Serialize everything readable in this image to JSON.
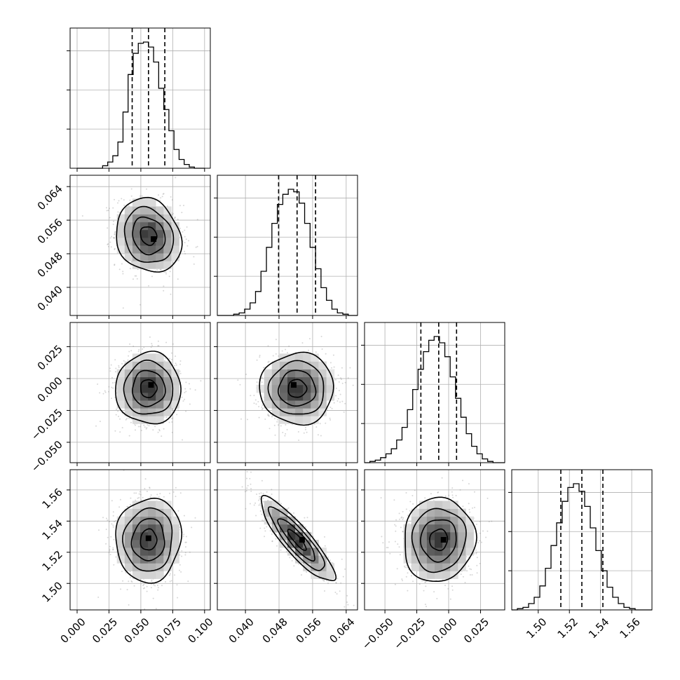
{
  "chart_data": {
    "type": "corner",
    "parameters": [
      {
        "range": [
          -0.0055,
          0.1045
        ],
        "ticks": [
          0.0,
          0.025,
          0.05,
          0.075,
          0.1
        ],
        "tick_labels": [
          "0.000",
          "0.025",
          "0.050",
          "0.075",
          "0.100"
        ],
        "quantiles": [
          0.0432,
          0.056,
          0.0688
        ],
        "hist_bin_edges": [
          0.0,
          0.004,
          0.008,
          0.012,
          0.016,
          0.02,
          0.024,
          0.028,
          0.032,
          0.036,
          0.04,
          0.044,
          0.048,
          0.052,
          0.056,
          0.06,
          0.064,
          0.068,
          0.072,
          0.076,
          0.08,
          0.084,
          0.088,
          0.092,
          0.096,
          0.1
        ],
        "hist_counts": [
          0,
          0,
          0,
          0,
          0,
          2,
          5,
          10,
          21,
          45,
          75,
          92,
          100,
          101,
          97,
          85,
          64,
          47,
          30,
          15,
          7,
          3,
          1,
          0,
          0
        ]
      },
      {
        "range": [
          0.0333,
          0.0667
        ],
        "ticks": [
          0.04,
          0.048,
          0.056,
          0.064
        ],
        "tick_labels": [
          "0.040",
          "0.048",
          "0.056",
          "0.064"
        ],
        "quantiles": [
          0.0479,
          0.0523,
          0.0567
        ],
        "hist_bin_edges": [
          0.0333,
          0.0346,
          0.0359,
          0.0372,
          0.0385,
          0.0398,
          0.0411,
          0.0424,
          0.0437,
          0.045,
          0.0463,
          0.0476,
          0.0489,
          0.0502,
          0.0515,
          0.0528,
          0.0541,
          0.0554,
          0.0567,
          0.058,
          0.0593,
          0.0606,
          0.0619,
          0.0632,
          0.0645,
          0.0658,
          0.0667
        ],
        "hist_counts": [
          0,
          0,
          0,
          1,
          2,
          5,
          10,
          19,
          35,
          54,
          73,
          88,
          96,
          100,
          98,
          89,
          73,
          54,
          37,
          22,
          12,
          5,
          2,
          1,
          0,
          0
        ]
      },
      {
        "range": [
          -0.066,
          0.044
        ],
        "ticks": [
          -0.05,
          -0.025,
          0.0,
          0.025
        ],
        "tick_labels": [
          "−0.050",
          "−0.025",
          "0.000",
          "0.025"
        ],
        "quantiles": [
          -0.0218,
          -0.0078,
          0.0062
        ],
        "hist_bin_edges": [
          -0.066,
          -0.0618,
          -0.0576,
          -0.0534,
          -0.0492,
          -0.045,
          -0.0408,
          -0.0366,
          -0.0324,
          -0.0282,
          -0.024,
          -0.0198,
          -0.0156,
          -0.0114,
          -0.0072,
          -0.003,
          0.0012,
          0.0054,
          0.0096,
          0.0138,
          0.018,
          0.0222,
          0.0264,
          0.0306,
          0.0348,
          0.039,
          0.044
        ],
        "hist_counts": [
          0,
          1,
          2,
          4,
          7,
          11,
          18,
          28,
          42,
          58,
          74,
          88,
          97,
          100,
          95,
          84,
          68,
          51,
          36,
          23,
          13,
          7,
          3,
          1,
          0,
          0
        ]
      },
      {
        "range": [
          1.483,
          1.573
        ],
        "ticks": [
          1.5,
          1.52,
          1.54,
          1.56
        ],
        "tick_labels": [
          "1.50",
          "1.52",
          "1.54",
          "1.56"
        ],
        "quantiles": [
          1.5145,
          1.528,
          1.5415
        ],
        "hist_bin_edges": [
          1.483,
          1.4866,
          1.4902,
          1.4938,
          1.4974,
          1.501,
          1.5046,
          1.5082,
          1.5118,
          1.5154,
          1.519,
          1.5226,
          1.5262,
          1.5298,
          1.5334,
          1.537,
          1.5406,
          1.5442,
          1.5478,
          1.5514,
          1.555,
          1.5586,
          1.5622,
          1.5658,
          1.5694,
          1.573
        ],
        "hist_counts": [
          0,
          1,
          2,
          5,
          10,
          19,
          33,
          51,
          69,
          86,
          97,
          100,
          94,
          82,
          65,
          47,
          31,
          18,
          10,
          5,
          2,
          1,
          0,
          0,
          0
        ]
      }
    ],
    "pairs": [
      {
        "x": 0,
        "y": 1,
        "mean": [
          0.056,
          0.0523
        ],
        "sd": [
          0.0128,
          0.0044
        ],
        "corr": -0.15,
        "peak": [
          0.06,
          0.0515
        ]
      },
      {
        "x": 0,
        "y": 2,
        "mean": [
          0.056,
          -0.0078
        ],
        "sd": [
          0.0128,
          0.014
        ],
        "corr": 0.0,
        "peak": [
          0.058,
          -0.005
        ]
      },
      {
        "x": 1,
        "y": 2,
        "mean": [
          0.0523,
          -0.0078
        ],
        "sd": [
          0.0044,
          0.014
        ],
        "corr": 0.0,
        "peak": [
          0.0515,
          -0.005
        ]
      },
      {
        "x": 0,
        "y": 3,
        "mean": [
          0.056,
          1.528
        ],
        "sd": [
          0.0128,
          0.0135
        ],
        "corr": 0.05,
        "peak": [
          0.056,
          1.529
        ]
      },
      {
        "x": 1,
        "y": 3,
        "mean": [
          0.0523,
          1.528
        ],
        "sd": [
          0.0044,
          0.0135
        ],
        "corr": -0.88,
        "peak": [
          0.0535,
          1.528
        ]
      },
      {
        "x": 2,
        "y": 3,
        "mean": [
          -0.0078,
          1.528
        ],
        "sd": [
          0.014,
          0.0135
        ],
        "corr": 0.05,
        "peak": [
          -0.004,
          1.528
        ]
      }
    ],
    "contour_levels_sigma": [
      0.5,
      1.0,
      1.5,
      2.0
    ],
    "grid": true,
    "legend": "none"
  }
}
